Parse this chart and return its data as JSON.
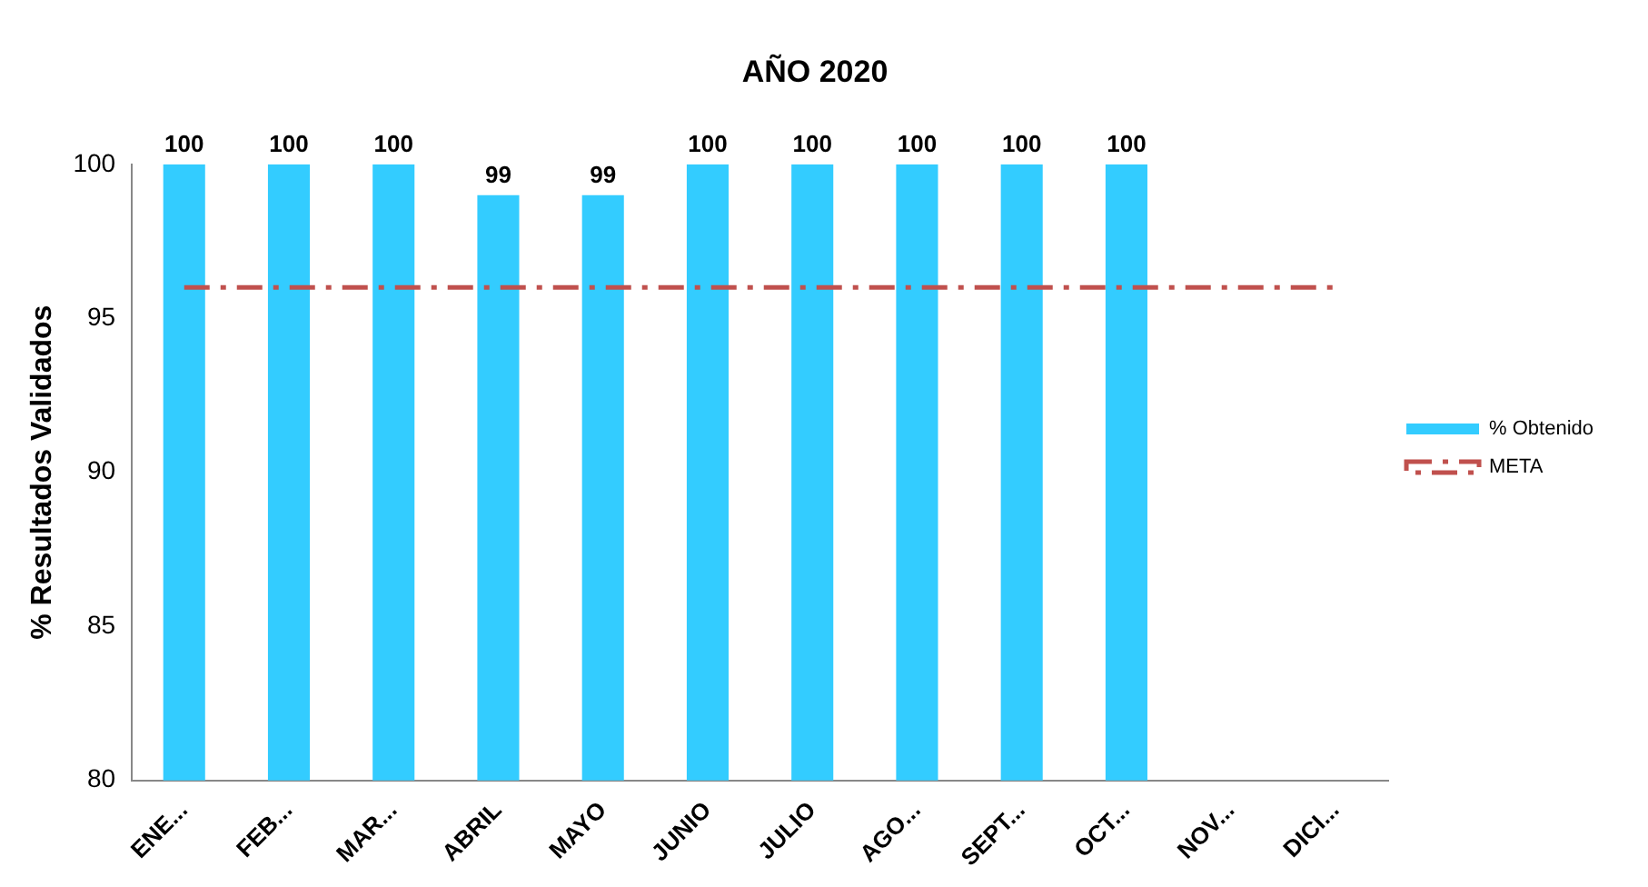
{
  "chart_data": {
    "type": "bar",
    "title": "AÑO 2020",
    "ylabel": "% Resultados Validados",
    "categories": [
      "ENE...",
      "FEB...",
      "MAR...",
      "ABRIL",
      "MAYO",
      "JUNIO",
      "JULIO",
      "AGO...",
      "SEPT...",
      "OCT...",
      "NOV...",
      "DICI..."
    ],
    "series": [
      {
        "name": "% Obtenido",
        "color": "#33ccff",
        "values": [
          100,
          100,
          100,
          99,
          99,
          100,
          100,
          100,
          100,
          100,
          null,
          null
        ],
        "value_labels": [
          "100",
          "100",
          "100",
          "99",
          "99",
          "100",
          "100",
          "100",
          "100",
          "100",
          null,
          null
        ]
      },
      {
        "name": "META",
        "type": "line",
        "color": "#c0504d",
        "line_style": "dashed",
        "marker": "none",
        "values": [
          96,
          96,
          96,
          96,
          96,
          96,
          96,
          96,
          96,
          96,
          96,
          96
        ]
      }
    ],
    "ylim": [
      80,
      100
    ],
    "yticks": [
      80,
      85,
      90,
      95,
      100
    ],
    "grid": false,
    "legend": "right"
  }
}
